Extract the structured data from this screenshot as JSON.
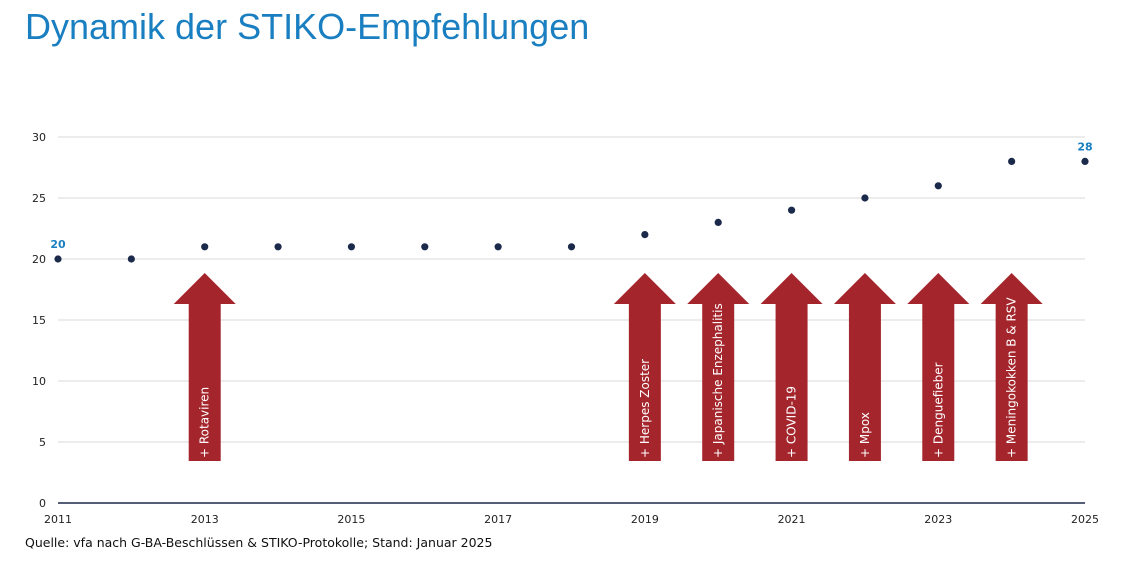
{
  "title": "Dynamik der STIKO-Empfehlungen",
  "source": "Quelle: vfa nach G-BA-Beschlüssen & STIKO-Protokolle; Stand: Januar 2025",
  "colors": {
    "title": "#1a7fc1",
    "point": "#1b2a4a",
    "arrow": "#a4262c",
    "grid": "#d9d9d9",
    "axis": "#1b2a4a",
    "data_label": "#1a7fc1"
  },
  "chart_data": {
    "type": "scatter",
    "title": "Dynamik der STIKO-Empfehlungen",
    "xlabel": "",
    "ylabel": "",
    "xlim": [
      2011,
      2025
    ],
    "ylim": [
      0,
      30
    ],
    "y_ticks": [
      0,
      5,
      10,
      15,
      20,
      25,
      30
    ],
    "x_ticks": [
      2011,
      2013,
      2015,
      2017,
      2019,
      2021,
      2023,
      2025
    ],
    "grid": true,
    "points": [
      {
        "x": 2011,
        "y": 20
      },
      {
        "x": 2012,
        "y": 20
      },
      {
        "x": 2013,
        "y": 21
      },
      {
        "x": 2014,
        "y": 21
      },
      {
        "x": 2015,
        "y": 21
      },
      {
        "x": 2016,
        "y": 21
      },
      {
        "x": 2017,
        "y": 21
      },
      {
        "x": 2018,
        "y": 21
      },
      {
        "x": 2019,
        "y": 22
      },
      {
        "x": 2020,
        "y": 23
      },
      {
        "x": 2021,
        "y": 24
      },
      {
        "x": 2022,
        "y": 25
      },
      {
        "x": 2023,
        "y": 26
      },
      {
        "x": 2024,
        "y": 28
      },
      {
        "x": 2025,
        "y": 28
      }
    ],
    "data_labels": [
      {
        "x": 2011,
        "y": 20,
        "text": "20"
      },
      {
        "x": 2025,
        "y": 28,
        "text": "28"
      }
    ],
    "annotations": [
      {
        "x": 2013,
        "label": "+ Rotaviren"
      },
      {
        "x": 2019,
        "label": "+ Herpes Zoster"
      },
      {
        "x": 2020,
        "label": "+ Japanische Enzephalitis"
      },
      {
        "x": 2021,
        "label": "+ COVID-19"
      },
      {
        "x": 2022,
        "label": "+ Mpox"
      },
      {
        "x": 2023,
        "label": "+ Denguefieber"
      },
      {
        "x": 2024,
        "label": "+ Meningokokken B & RSV"
      }
    ]
  }
}
